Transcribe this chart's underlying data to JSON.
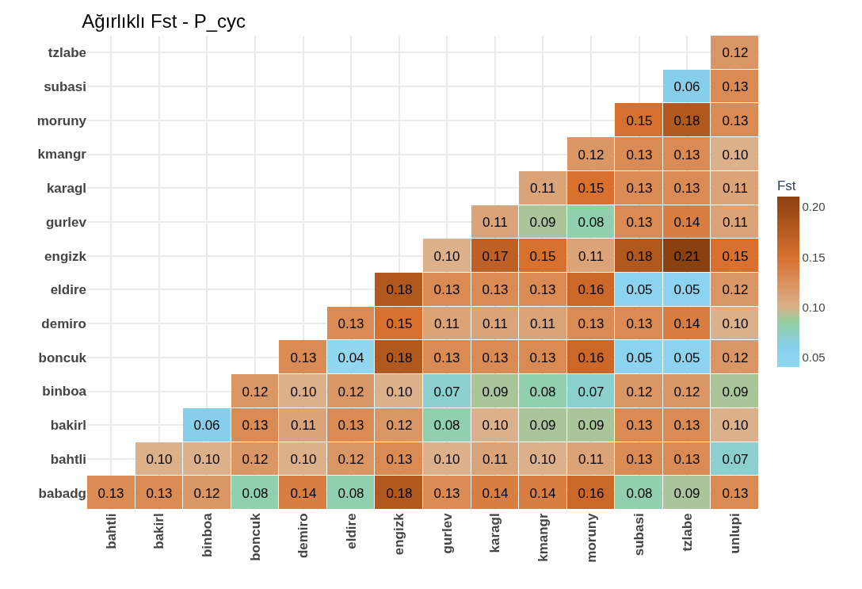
{
  "chart_data": {
    "type": "heatmap",
    "title": "Ağırlıklı Fst - P_cyc",
    "clabel": "Fst",
    "categories": [
      "bahtli",
      "bakirl",
      "binboa",
      "boncuk",
      "demiro",
      "eldire",
      "engizk",
      "gurlev",
      "karagl",
      "kmangr",
      "moruny",
      "subasi",
      "tzlabe",
      "unlupi"
    ],
    "y_categories": [
      "tzlabe",
      "subasi",
      "moruny",
      "kmangr",
      "karagl",
      "gurlev",
      "engizk",
      "eldire",
      "demiro",
      "boncuk",
      "binboa",
      "bakirl",
      "bahtli",
      "babadg"
    ],
    "cells": [
      [
        null,
        null,
        null,
        null,
        null,
        null,
        null,
        null,
        null,
        null,
        null,
        null,
        null,
        0.12
      ],
      [
        null,
        null,
        null,
        null,
        null,
        null,
        null,
        null,
        null,
        null,
        null,
        null,
        0.06,
        0.13
      ],
      [
        null,
        null,
        null,
        null,
        null,
        null,
        null,
        null,
        null,
        null,
        null,
        0.15,
        0.18,
        0.13
      ],
      [
        null,
        null,
        null,
        null,
        null,
        null,
        null,
        null,
        null,
        null,
        0.12,
        0.13,
        0.13,
        0.1
      ],
      [
        null,
        null,
        null,
        null,
        null,
        null,
        null,
        null,
        null,
        0.11,
        0.15,
        0.13,
        0.13,
        0.11
      ],
      [
        null,
        null,
        null,
        null,
        null,
        null,
        null,
        null,
        0.11,
        0.09,
        0.08,
        0.13,
        0.14,
        0.11
      ],
      [
        null,
        null,
        null,
        null,
        null,
        null,
        null,
        0.1,
        0.17,
        0.15,
        0.11,
        0.18,
        0.21,
        0.15
      ],
      [
        null,
        null,
        null,
        null,
        null,
        null,
        0.18,
        0.13,
        0.13,
        0.13,
        0.16,
        0.05,
        0.05,
        0.12
      ],
      [
        null,
        null,
        null,
        null,
        null,
        0.13,
        0.15,
        0.11,
        0.11,
        0.11,
        0.13,
        0.13,
        0.14,
        0.1
      ],
      [
        null,
        null,
        null,
        null,
        0.13,
        0.04,
        0.18,
        0.13,
        0.13,
        0.13,
        0.16,
        0.05,
        0.05,
        0.12
      ],
      [
        null,
        null,
        null,
        0.12,
        0.1,
        0.12,
        0.1,
        0.07,
        0.09,
        0.08,
        0.07,
        0.12,
        0.12,
        0.09
      ],
      [
        null,
        null,
        0.06,
        0.13,
        0.11,
        0.13,
        0.12,
        0.08,
        0.1,
        0.09,
        0.09,
        0.13,
        0.13,
        0.1
      ],
      [
        null,
        0.1,
        0.1,
        0.12,
        0.1,
        0.12,
        0.13,
        0.1,
        0.11,
        0.1,
        0.11,
        0.13,
        0.13,
        0.07
      ],
      [
        0.13,
        0.13,
        0.12,
        0.08,
        0.14,
        0.08,
        0.18,
        0.13,
        0.14,
        0.14,
        0.16,
        0.08,
        0.09,
        0.13
      ]
    ],
    "cell_labels": [
      [
        null,
        null,
        null,
        null,
        null,
        null,
        null,
        null,
        null,
        null,
        null,
        null,
        null,
        "0.12"
      ],
      [
        null,
        null,
        null,
        null,
        null,
        null,
        null,
        null,
        null,
        null,
        null,
        null,
        "0.06",
        "0.13"
      ],
      [
        null,
        null,
        null,
        null,
        null,
        null,
        null,
        null,
        null,
        null,
        null,
        "0.15",
        "0.18",
        "0.13"
      ],
      [
        null,
        null,
        null,
        null,
        null,
        null,
        null,
        null,
        null,
        null,
        "0.12",
        "0.13",
        "0.13",
        "0.10"
      ],
      [
        null,
        null,
        null,
        null,
        null,
        null,
        null,
        null,
        null,
        "0.11",
        "0.15",
        "0.13",
        "0.13",
        "0.11"
      ],
      [
        null,
        null,
        null,
        null,
        null,
        null,
        null,
        null,
        "0.11",
        "0.09",
        "0.08",
        "0.13",
        "0.14",
        "0.11"
      ],
      [
        null,
        null,
        null,
        null,
        null,
        null,
        null,
        "0.10",
        "0.17",
        "0.15",
        "0.11",
        "0.18",
        "0.21",
        "0.15"
      ],
      [
        null,
        null,
        null,
        null,
        null,
        null,
        "0.18",
        "0.13",
        "0.13",
        "0.13",
        "0.16",
        "0.05",
        "0.05",
        "0.12"
      ],
      [
        null,
        null,
        null,
        null,
        null,
        "0.13",
        "0.15",
        "0.11",
        "0.11",
        "0.11",
        "0.13",
        "0.13",
        "0.14",
        "0.10"
      ],
      [
        null,
        null,
        null,
        null,
        "0.13",
        "0.04",
        "0.18",
        "0.13",
        "0.13",
        "0.13",
        "0.16",
        "0.05",
        "0.05",
        "0.12"
      ],
      [
        null,
        null,
        null,
        "0.12",
        "0.10",
        "0.12",
        "0.10",
        "0.07",
        "0.09",
        "0.08",
        "0.07",
        "0.12",
        "0.12",
        "0.09"
      ],
      [
        null,
        null,
        "0.06",
        "0.13",
        "0.11",
        "0.13",
        "0.12",
        "0.08",
        "0.10",
        "0.09",
        "0.09",
        "0.13",
        "0.13",
        "0.10"
      ],
      [
        null,
        "0.10",
        "0.10",
        "0.12",
        "0.10",
        "0.12",
        "0.13",
        "0.10",
        "0.11",
        "0.10",
        "0.11",
        "0.13",
        "0.13",
        "0.07"
      ],
      [
        "0.13",
        "0.13",
        "0.12",
        "0.08",
        "0.14",
        "0.08",
        "0.18",
        "0.13",
        "0.14",
        "0.14",
        "0.16",
        "0.08",
        "0.09",
        "0.13"
      ]
    ],
    "clim": [
      0.04,
      0.21
    ],
    "cticks": [
      0.05,
      {
        "value": 0.1,
        "label": "0.10"
      },
      0.15,
      {
        "value": 0.2,
        "label": "0.20"
      }
    ],
    "grid": true
  }
}
